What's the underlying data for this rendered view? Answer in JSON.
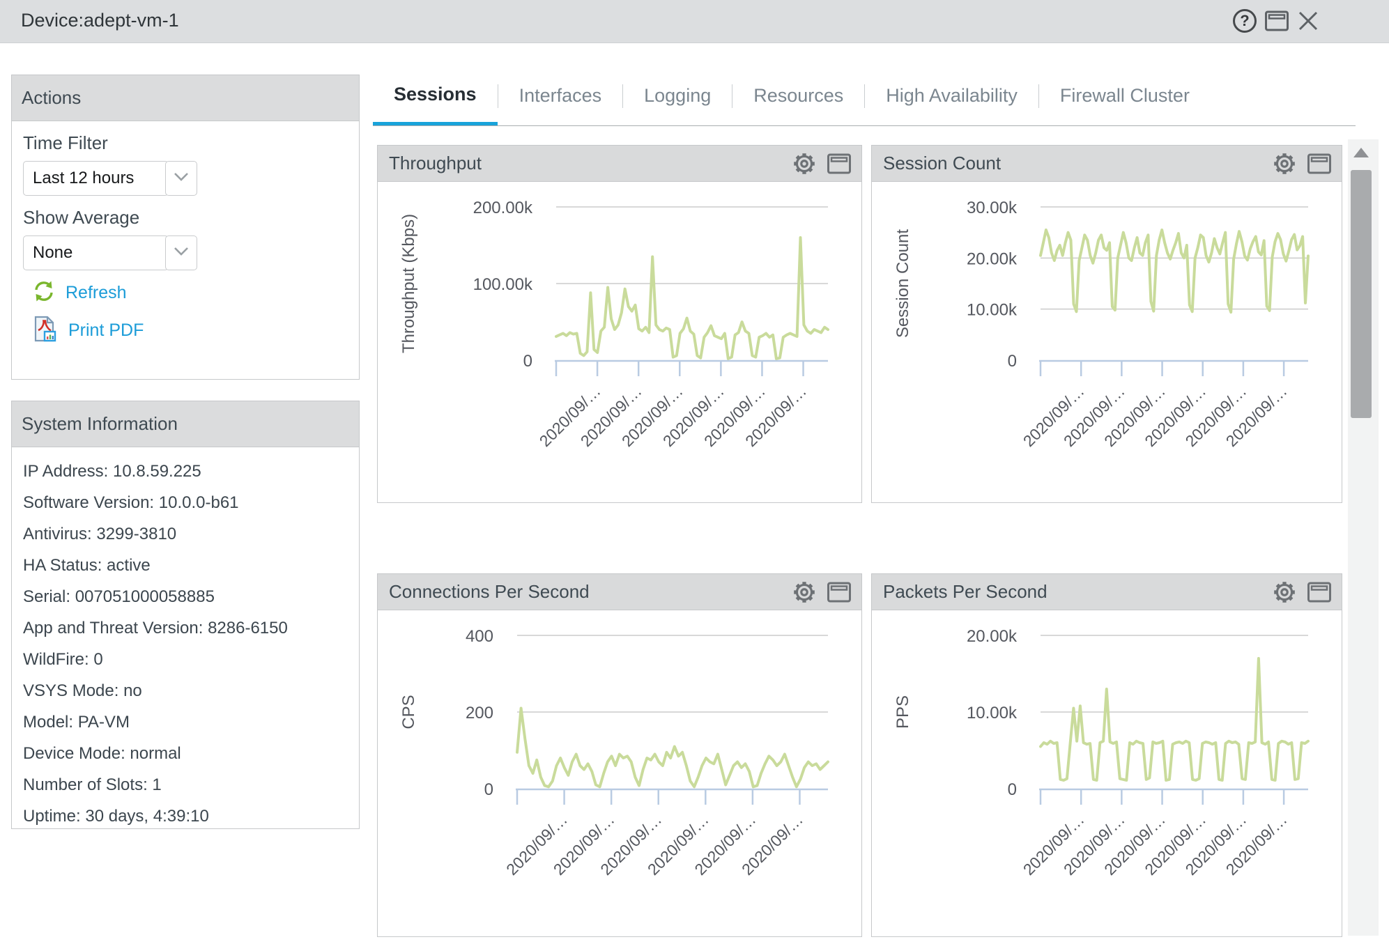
{
  "window": {
    "title": "Device:adept-vm-1"
  },
  "actions": {
    "title": "Actions",
    "time_filter": {
      "label": "Time Filter",
      "value": "Last 12 hours"
    },
    "show_average": {
      "label": "Show Average",
      "value": "None"
    },
    "refresh_label": "Refresh",
    "print_pdf_label": "Print PDF"
  },
  "system_information": {
    "title": "System Information",
    "items": [
      "IP Address: 10.8.59.225",
      "Software Version: 10.0.0-b61",
      "Antivirus: 3299-3810",
      "HA Status: active",
      "Serial: 007051000058885",
      "App and Threat Version: 8286-6150",
      "WildFire: 0",
      "VSYS Mode: no",
      "Model: PA-VM",
      "Device Mode: normal",
      "Number of Slots: 1",
      "Uptime: 30 days, 4:39:10"
    ]
  },
  "tabs": [
    "Sessions",
    "Interfaces",
    "Logging",
    "Resources",
    "High Availability",
    "Firewall Cluster"
  ],
  "active_tab": "Sessions",
  "colors": {
    "accent_blue": "#18a3da",
    "link_blue": "#1b9cd8",
    "line_green": "#c9db9b",
    "axis_blue": "#b9cbe2",
    "grid_gray": "#cbcbcb",
    "refresh_green": "#7ab62d"
  },
  "chart_data": [
    {
      "type": "line",
      "title": "Throughput",
      "ylabel": "Throughput (Kbps)",
      "ylim": [
        0,
        200000
      ],
      "yticks": [
        0,
        100000,
        200000
      ],
      "ytick_labels": [
        "0",
        "100.00k",
        "200.00k"
      ],
      "x_labels": [
        "2020/09/…",
        "2020/09/…",
        "2020/09/…",
        "2020/09/…",
        "2020/09/…",
        "2020/09/…"
      ],
      "grid": true,
      "legend": "none",
      "values": [
        31000,
        33000,
        35000,
        32000,
        36000,
        34000,
        35000,
        9000,
        6000,
        11000,
        88000,
        14000,
        10000,
        38000,
        43000,
        95000,
        54000,
        40000,
        46000,
        62000,
        93000,
        70000,
        64000,
        72000,
        41000,
        38000,
        43000,
        36000,
        135000,
        46000,
        40000,
        38000,
        42000,
        40000,
        4000,
        6000,
        35000,
        41000,
        55000,
        38000,
        34000,
        6000,
        3000,
        30000,
        36000,
        45000,
        32000,
        30000,
        28000,
        35000,
        2000,
        4000,
        33000,
        36000,
        50000,
        38000,
        35000,
        6000,
        4000,
        30000,
        32000,
        35000,
        30000,
        33000,
        2000,
        3000,
        30000,
        33000,
        35000,
        33000,
        31000,
        160000,
        46000,
        38000,
        35000,
        40000,
        38000,
        36000,
        43000,
        40000
      ]
    },
    {
      "type": "line",
      "title": "Session Count",
      "ylabel": "Session Count",
      "ylim": [
        0,
        30000
      ],
      "yticks": [
        0,
        10000,
        20000,
        30000
      ],
      "ytick_labels": [
        "0",
        "10.00k",
        "20.00k",
        "30.00k"
      ],
      "x_labels": [
        "2020/09/…",
        "2020/09/…",
        "2020/09/…",
        "2020/09/…",
        "2020/09/…",
        "2020/09/…"
      ],
      "grid": true,
      "legend": "none",
      "values": [
        20500,
        23000,
        25500,
        24000,
        21000,
        19500,
        21500,
        22500,
        20500,
        23000,
        25000,
        23500,
        11000,
        9500,
        19500,
        22000,
        24500,
        23500,
        20500,
        19000,
        21000,
        23500,
        24500,
        22000,
        21500,
        23000,
        10500,
        9800,
        20000,
        22500,
        25000,
        23000,
        20000,
        19500,
        22000,
        24000,
        21000,
        20500,
        23000,
        24500,
        11500,
        9600,
        20500,
        23500,
        25500,
        23000,
        21000,
        19800,
        21500,
        23000,
        24800,
        21000,
        20000,
        22500,
        10800,
        9500,
        20000,
        22000,
        24500,
        24000,
        20500,
        19200,
        21000,
        23800,
        22000,
        20800,
        23000,
        25000,
        11000,
        9400,
        19800,
        22800,
        25200,
        23200,
        20400,
        19600,
        21800,
        23200,
        24200,
        21200,
        20600,
        23400,
        10600,
        9700,
        20200,
        23200,
        24800,
        23600,
        20800,
        19400,
        21400,
        23600,
        24600,
        21600,
        22400,
        24200,
        11200,
        20400
      ]
    },
    {
      "type": "line",
      "title": "Connections Per Second",
      "ylabel": "CPS",
      "ylim": [
        0,
        400
      ],
      "yticks": [
        0,
        200,
        400
      ],
      "ytick_labels": [
        "0",
        "200",
        "400"
      ],
      "x_labels": [
        "2020/09/…",
        "2020/09/…",
        "2020/09/…",
        "2020/09/…",
        "2020/09/…",
        "2020/09/…"
      ],
      "grid": true,
      "legend": "none",
      "values": [
        95,
        210,
        130,
        60,
        40,
        75,
        30,
        8,
        5,
        20,
        60,
        80,
        55,
        35,
        70,
        90,
        60,
        50,
        65,
        45,
        10,
        5,
        40,
        70,
        85,
        60,
        90,
        80,
        85,
        70,
        30,
        8,
        50,
        80,
        75,
        90,
        70,
        60,
        95,
        80,
        110,
        85,
        95,
        60,
        20,
        5,
        30,
        60,
        80,
        70,
        65,
        90,
        50,
        10,
        35,
        60,
        70,
        55,
        65,
        45,
        5,
        8,
        40,
        65,
        85,
        75,
        60,
        70,
        90,
        60,
        30,
        5,
        25,
        55,
        70,
        60,
        65,
        50,
        60,
        70
      ]
    },
    {
      "type": "line",
      "title": "Packets Per Second",
      "ylabel": "PPS",
      "ylim": [
        0,
        20000
      ],
      "yticks": [
        0,
        10000,
        20000
      ],
      "ytick_labels": [
        "0",
        "10.00k",
        "20.00k"
      ],
      "x_labels": [
        "2020/09/…",
        "2020/09/…",
        "2020/09/…",
        "2020/09/…",
        "2020/09/…",
        "2020/09/…"
      ],
      "grid": true,
      "legend": "none",
      "values": [
        5500,
        6000,
        5800,
        6200,
        5900,
        6000,
        1200,
        1100,
        1300,
        6000,
        10500,
        6200,
        10800,
        6000,
        5800,
        5900,
        1200,
        1100,
        6000,
        6200,
        13000,
        6100,
        5900,
        6100,
        1300,
        1200,
        1100,
        6000,
        5800,
        6200,
        6000,
        5900,
        1200,
        1400,
        6100,
        5900,
        6000,
        6200,
        1100,
        1200,
        5800,
        6000,
        6100,
        5900,
        6200,
        6000,
        1200,
        1100,
        1300,
        5900,
        6100,
        6000,
        5800,
        6000,
        1200,
        1100,
        5900,
        6200,
        6000,
        6100,
        5800,
        1300,
        1200,
        6000,
        5900,
        6100,
        17000,
        6000,
        5800,
        6100,
        1200,
        1100,
        5900,
        6200,
        6100,
        5800,
        6000,
        1200,
        1300,
        6000,
        5900,
        6200
      ]
    }
  ]
}
